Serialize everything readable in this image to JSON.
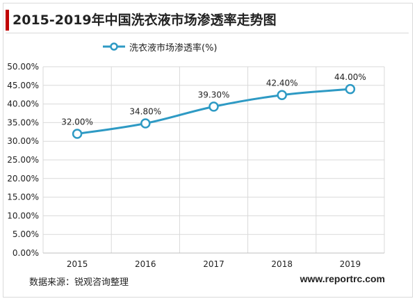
{
  "header": {
    "title": "2015-2019年中国洗衣液市场渗透率走势图"
  },
  "footer": {
    "source": "数据来源：锐观咨询整理",
    "website": "www.reportrc.com"
  },
  "colors": {
    "accent_bar": "#c00000",
    "series_line": "#2e9ac4",
    "marker_fill": "#ffffff",
    "grid": "#d9d9d9"
  },
  "chart_data": {
    "type": "line",
    "title": "2015-2019年中国洗衣液市场渗透率走势图",
    "categories": [
      "2015",
      "2016",
      "2017",
      "2018",
      "2019"
    ],
    "series": [
      {
        "name": "洗衣液市场渗透率(%)",
        "values": [
          32.0,
          34.8,
          39.3,
          42.4,
          44.0
        ],
        "labels": [
          "32.00%",
          "34.80%",
          "39.30%",
          "42.40%",
          "44.00%"
        ]
      }
    ],
    "ylim": [
      0,
      50
    ],
    "yticks": [
      "0.00%",
      "5.00%",
      "10.00%",
      "15.00%",
      "20.00%",
      "25.00%",
      "30.00%",
      "35.00%",
      "40.00%",
      "45.00%",
      "50.00%"
    ],
    "grid": true,
    "legend": "top-left"
  }
}
